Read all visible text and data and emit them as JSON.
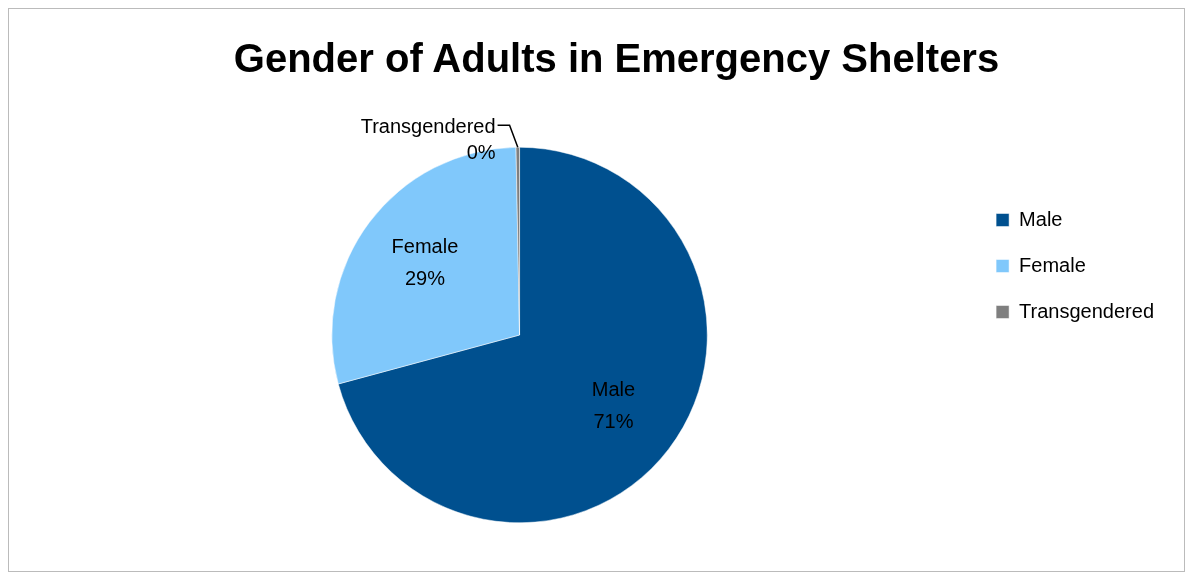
{
  "chart_data": {
    "type": "pie",
    "title": "Gender of Adults in Emergency Shelters",
    "categories": [
      "Male",
      "Female",
      "Transgendered"
    ],
    "values": [
      70.8,
      28.9,
      0.3
    ],
    "value_labels": [
      "71%",
      "29%",
      "0%"
    ],
    "colors": [
      "#00508f",
      "#80c8fb",
      "#7f7f7f"
    ],
    "legend": "right"
  }
}
